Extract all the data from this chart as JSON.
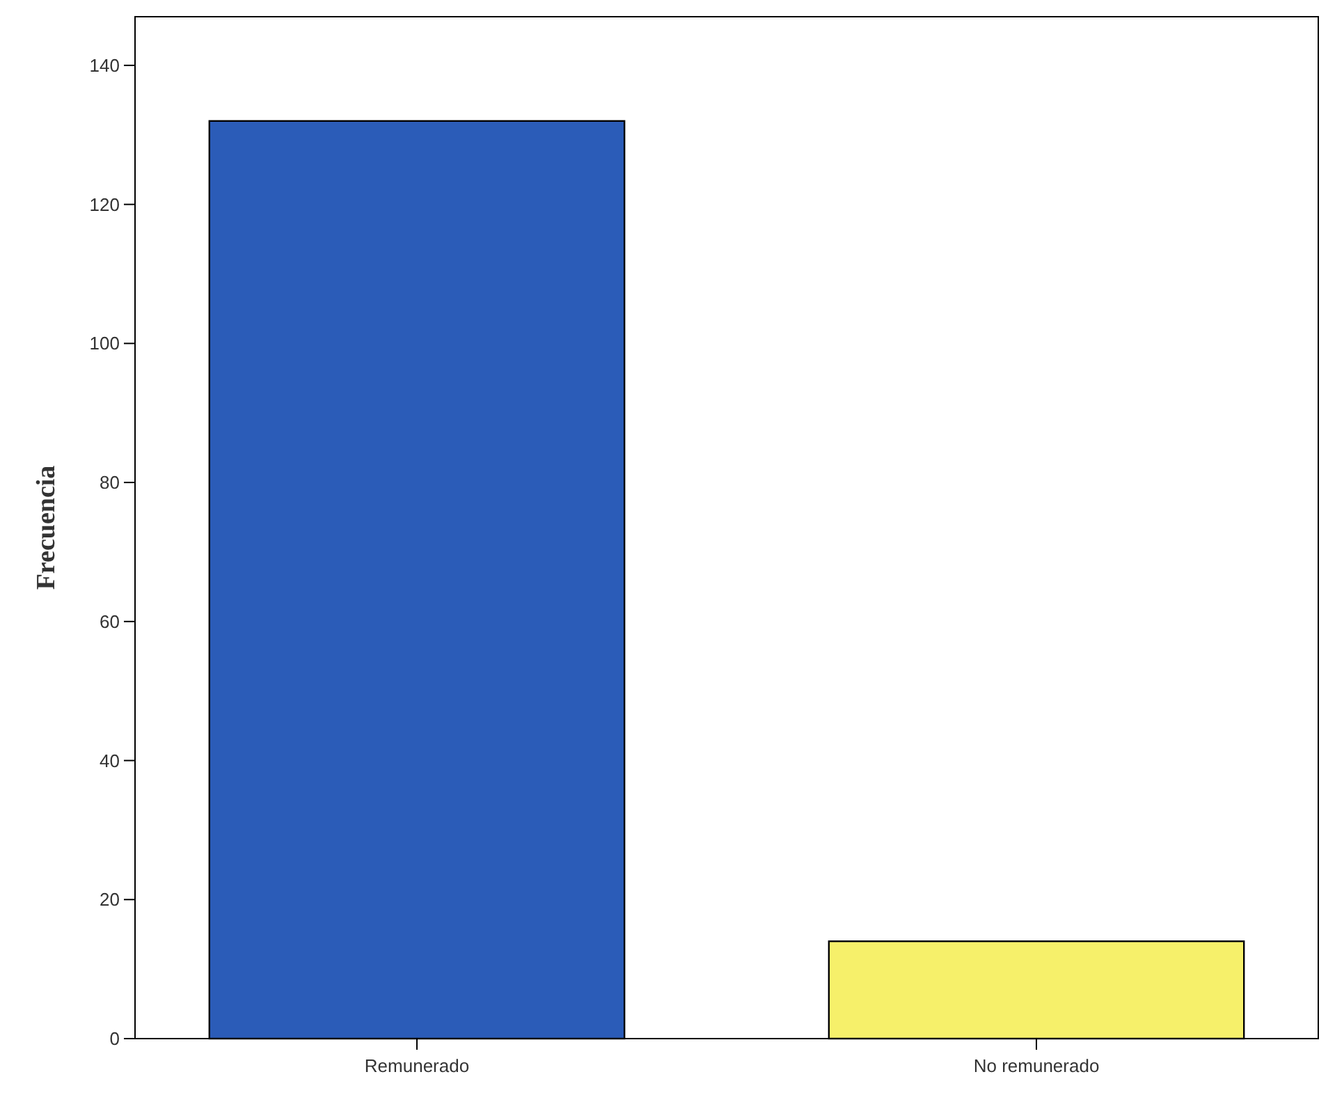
{
  "chart_data": {
    "type": "bar",
    "ylabel": "Frecuencia",
    "categories": [
      "Remunerado",
      "No remunerado"
    ],
    "values": [
      132,
      14
    ],
    "colors": [
      "#2b5cb8",
      "#f6f06a"
    ],
    "ylim": [
      0,
      147
    ],
    "yticks": [
      0,
      20,
      40,
      60,
      80,
      100,
      120,
      140
    ],
    "grid": false
  }
}
